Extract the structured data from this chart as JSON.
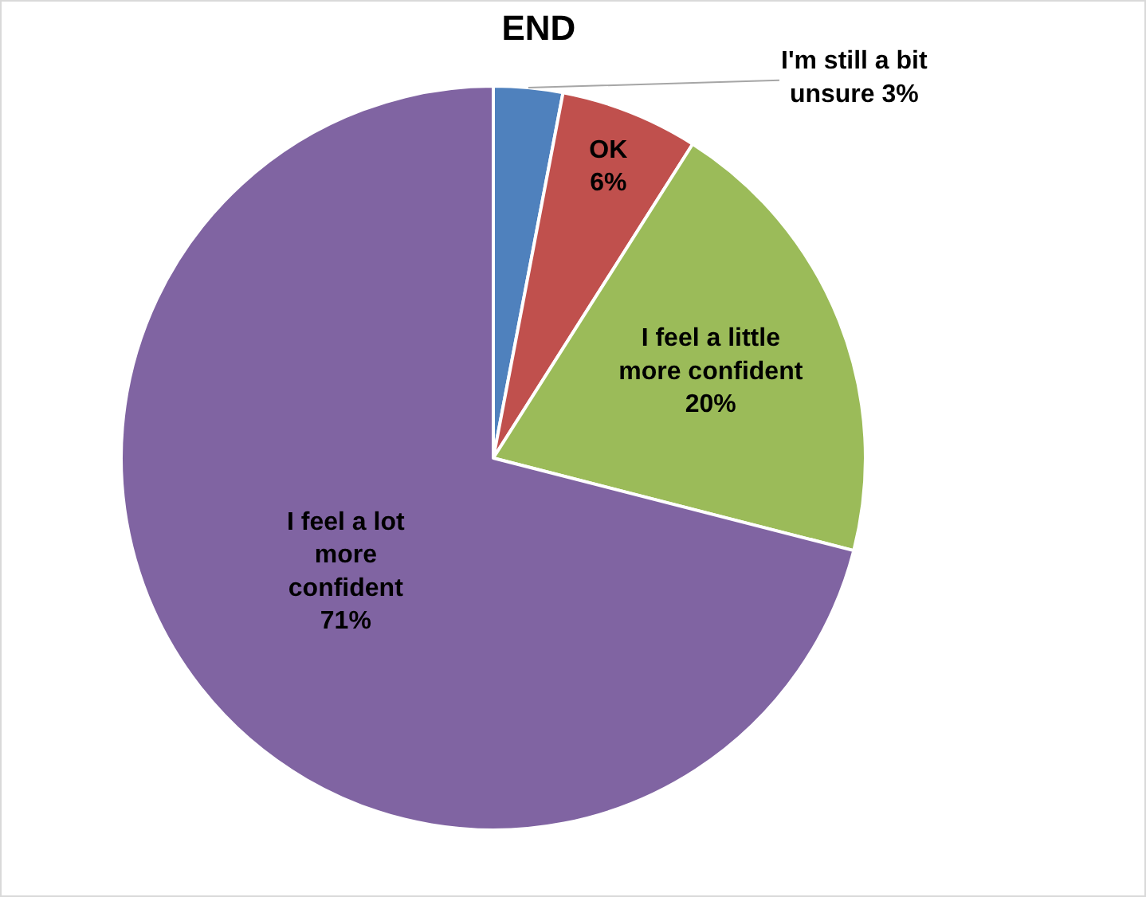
{
  "chart_data": {
    "type": "pie",
    "title": "END",
    "categories": [
      "I'm still a bit unsure",
      "OK",
      "I feel a little more confident",
      "I feel a lot more confident"
    ],
    "values": [
      3,
      6,
      20,
      71
    ],
    "colors": [
      "#4f81bd",
      "#c0504d",
      "#9bbb59",
      "#8064a2"
    ],
    "value_labels": [
      "3%",
      "6%",
      "20%",
      "71%"
    ],
    "legend": false
  }
}
